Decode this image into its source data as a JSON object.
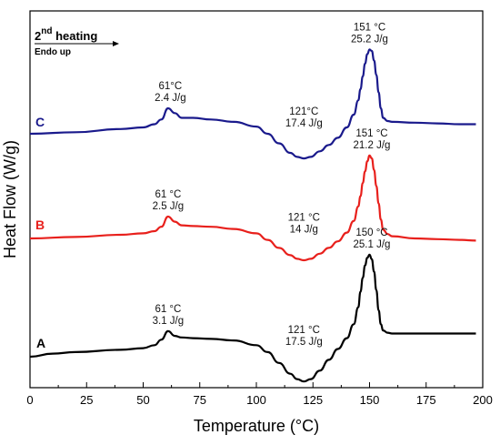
{
  "chart_data": {
    "type": "line",
    "xlabel": "Temperature (°C)",
    "ylabel": "Heat Flow (W/g)",
    "xlim": [
      0,
      200
    ],
    "xticks": [
      "0",
      "25",
      "50",
      "75",
      "100",
      "125",
      "150",
      "175",
      "200"
    ],
    "y_tick_labels": "none",
    "grid": false,
    "header": {
      "main": "2",
      "superscript": "nd",
      "rest": " heating",
      "sub": "Endo up"
    },
    "series": [
      {
        "name": "C",
        "color": "#1a1a8c",
        "x": [
          0,
          20,
          40,
          50,
          55,
          58,
          61,
          64,
          67,
          72,
          80,
          90,
          100,
          105,
          110,
          115,
          118,
          121,
          124,
          128,
          132,
          136,
          140,
          143,
          145,
          146,
          147,
          148,
          149,
          150,
          151,
          152,
          153,
          154,
          155,
          156,
          158,
          160,
          170,
          180,
          190,
          197
        ],
        "y": [
          0.0,
          0.1,
          0.3,
          0.4,
          0.6,
          0.9,
          1.6,
          1.3,
          1.0,
          1.0,
          0.9,
          0.75,
          0.45,
          0.0,
          -0.6,
          -1.2,
          -1.45,
          -1.55,
          -1.45,
          -1.1,
          -0.7,
          -0.25,
          0.4,
          1.2,
          2.1,
          2.8,
          3.6,
          4.4,
          5.0,
          5.3,
          5.2,
          4.6,
          3.7,
          2.6,
          1.6,
          1.0,
          0.8,
          0.75,
          0.7,
          0.65,
          0.6,
          0.6
        ]
      },
      {
        "name": "B",
        "color": "#e8201c",
        "x": [
          0,
          20,
          40,
          50,
          55,
          58,
          61,
          64,
          67,
          72,
          80,
          90,
          100,
          105,
          110,
          115,
          118,
          121,
          124,
          128,
          132,
          136,
          140,
          143,
          145,
          146,
          147,
          148,
          149,
          150,
          151,
          152,
          153,
          154,
          155,
          156,
          158,
          160,
          170,
          180,
          190,
          197
        ],
        "y": [
          0.0,
          0.1,
          0.25,
          0.35,
          0.5,
          0.8,
          1.5,
          1.15,
          0.9,
          0.85,
          0.8,
          0.65,
          0.35,
          -0.1,
          -0.65,
          -1.15,
          -1.4,
          -1.5,
          -1.4,
          -1.05,
          -0.65,
          -0.2,
          0.4,
          1.2,
          2.2,
          2.9,
          3.8,
          4.6,
          5.3,
          5.7,
          5.5,
          4.7,
          3.6,
          2.4,
          1.3,
          0.6,
          0.3,
          0.15,
          0.0,
          -0.05,
          -0.1,
          -0.15
        ]
      },
      {
        "name": "A",
        "color": "#000000",
        "x": [
          0,
          10,
          20,
          40,
          50,
          55,
          58,
          61,
          64,
          67,
          72,
          80,
          90,
          100,
          105,
          110,
          115,
          118,
          121,
          124,
          128,
          132,
          136,
          140,
          143,
          145,
          146,
          147,
          148,
          149,
          150,
          151,
          152,
          153,
          154,
          155,
          156,
          158,
          160,
          170,
          180,
          190,
          197
        ],
        "y": [
          0.0,
          0.2,
          0.3,
          0.45,
          0.55,
          0.75,
          1.1,
          1.65,
          1.35,
          1.25,
          1.2,
          1.15,
          1.05,
          0.75,
          0.3,
          -0.4,
          -1.1,
          -1.45,
          -1.6,
          -1.45,
          -0.9,
          -0.2,
          0.5,
          1.2,
          2.1,
          3.2,
          4.2,
          5.1,
          5.9,
          6.4,
          6.6,
          6.3,
          5.5,
          4.3,
          3.0,
          2.1,
          1.7,
          1.55,
          1.5,
          1.5,
          1.5,
          1.5,
          1.5
        ]
      }
    ],
    "annotations": [
      {
        "lines": [
          "61°C",
          "2.4 J/g"
        ],
        "x": 62,
        "series": "C",
        "anchor": "above-peak"
      },
      {
        "lines": [
          "121°C",
          "17.4 J/g"
        ],
        "x": 121,
        "series": "C",
        "anchor": "above-dip"
      },
      {
        "lines": [
          "151 °C",
          "25.2 J/g"
        ],
        "x": 150,
        "series": "C",
        "anchor": "above-peak"
      },
      {
        "lines": [
          "61 °C",
          "2.5 J/g"
        ],
        "x": 61,
        "series": "B",
        "anchor": "above-peak"
      },
      {
        "lines": [
          "121 °C",
          "14 J/g"
        ],
        "x": 121,
        "series": "B",
        "anchor": "above-dip"
      },
      {
        "lines": [
          "151 °C",
          "21.2 J/g"
        ],
        "x": 151,
        "series": "B",
        "anchor": "above-peak"
      },
      {
        "lines": [
          "61 °C",
          "3.1 J/g"
        ],
        "x": 61,
        "series": "A",
        "anchor": "above-peak"
      },
      {
        "lines": [
          "121 °C",
          "17.5 J/g"
        ],
        "x": 121,
        "series": "A",
        "anchor": "above-dip"
      },
      {
        "lines": [
          "150 °C",
          "25.1 J/g"
        ],
        "x": 151,
        "series": "A",
        "anchor": "above-peak"
      }
    ]
  }
}
